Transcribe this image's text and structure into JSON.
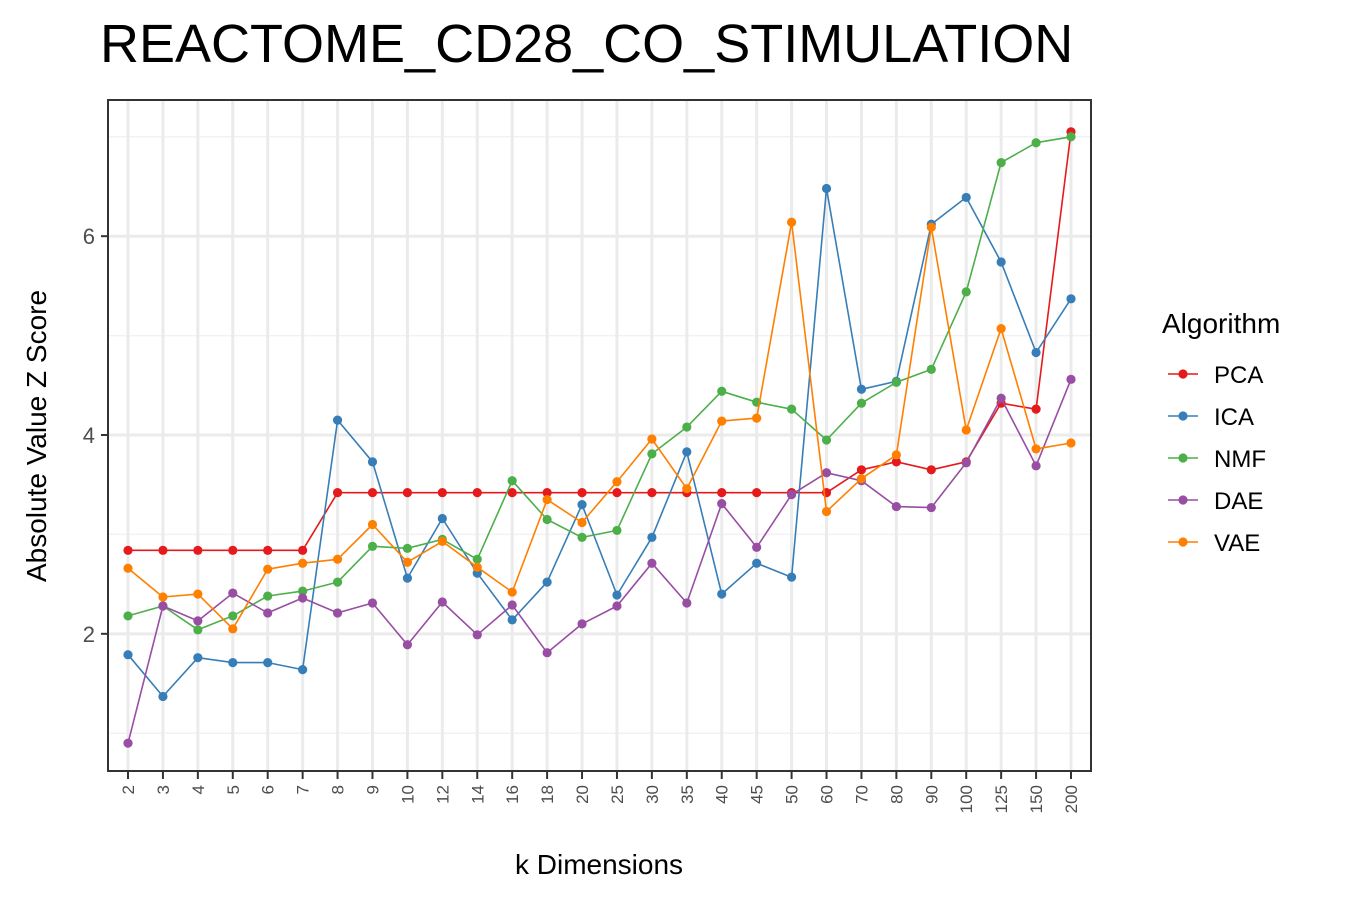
{
  "chart_data": {
    "type": "line",
    "title": "REACTOME_CD28_CO_STIMULATION",
    "xlabel": "k Dimensions",
    "ylabel": "Absolute Value Z Score",
    "ylim": [
      0.62,
      7.37
    ],
    "yticks": [
      2,
      4,
      6
    ],
    "grid": true,
    "legend_title": "Algorithm",
    "legend_position": "right",
    "categories": [
      "2",
      "3",
      "4",
      "5",
      "6",
      "7",
      "8",
      "9",
      "10",
      "12",
      "14",
      "16",
      "18",
      "20",
      "25",
      "30",
      "35",
      "40",
      "45",
      "50",
      "60",
      "70",
      "80",
      "90",
      "100",
      "125",
      "150",
      "200"
    ],
    "series": [
      {
        "name": "PCA",
        "color": "#e41a1c",
        "values": [
          2.84,
          2.84,
          2.84,
          2.84,
          2.84,
          2.84,
          3.42,
          3.42,
          3.42,
          3.42,
          3.42,
          3.42,
          3.42,
          3.42,
          3.42,
          3.42,
          3.42,
          3.42,
          3.42,
          3.42,
          3.42,
          3.65,
          3.73,
          3.65,
          3.73,
          4.32,
          4.26,
          7.05
        ]
      },
      {
        "name": "ICA",
        "color": "#377eb8",
        "values": [
          1.79,
          1.37,
          1.76,
          1.71,
          1.71,
          1.64,
          4.15,
          3.73,
          2.56,
          3.16,
          2.61,
          2.14,
          2.52,
          3.3,
          2.39,
          2.97,
          3.83,
          2.4,
          2.71,
          2.57,
          6.48,
          4.46,
          4.54,
          6.12,
          6.39,
          5.74,
          4.83,
          5.37
        ]
      },
      {
        "name": "NMF",
        "color": "#4daf4a",
        "values": [
          2.18,
          2.28,
          2.04,
          2.18,
          2.38,
          2.43,
          2.52,
          2.88,
          2.86,
          2.95,
          2.75,
          3.54,
          3.15,
          2.97,
          3.04,
          3.81,
          4.08,
          4.44,
          4.33,
          4.26,
          3.95,
          4.32,
          4.53,
          4.66,
          5.44,
          6.74,
          6.94,
          7.0
        ]
      },
      {
        "name": "DAE",
        "color": "#984ea3",
        "values": [
          0.9,
          2.28,
          2.13,
          2.41,
          2.21,
          2.36,
          2.21,
          2.31,
          1.89,
          2.32,
          1.99,
          2.29,
          1.81,
          2.1,
          2.28,
          2.71,
          2.31,
          3.31,
          2.87,
          3.4,
          3.62,
          3.54,
          3.28,
          3.27,
          3.72,
          4.37,
          3.69,
          4.56
        ]
      },
      {
        "name": "VAE",
        "color": "#ff7f00",
        "values": [
          2.66,
          2.37,
          2.4,
          2.05,
          2.65,
          2.71,
          2.75,
          3.1,
          2.72,
          2.93,
          2.67,
          2.42,
          3.35,
          3.12,
          3.53,
          3.96,
          3.46,
          4.14,
          4.17,
          6.14,
          3.23,
          3.56,
          3.8,
          6.09,
          4.05,
          5.07,
          3.86,
          3.92
        ]
      }
    ]
  }
}
